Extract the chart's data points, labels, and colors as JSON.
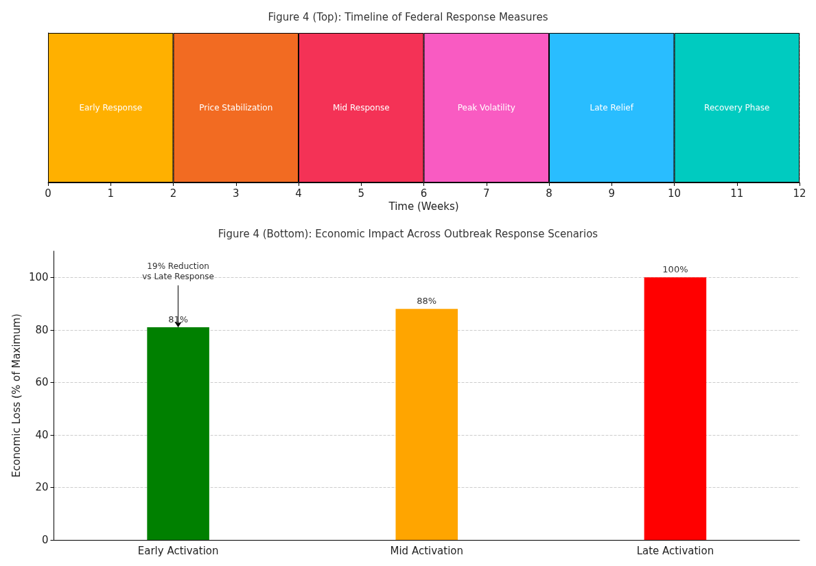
{
  "chart_data": [
    {
      "type": "bar",
      "title": "Figure 4 (Top): Timeline of Federal Response Measures",
      "xlabel": "Time (Weeks)",
      "orientation": "horizontal",
      "stacked": true,
      "categories": [
        null
      ],
      "xlim": [
        0,
        12
      ],
      "xticks": [
        0,
        1,
        2,
        3,
        4,
        5,
        6,
        7,
        8,
        9,
        10,
        11,
        12
      ],
      "grid": true,
      "tick_labels": "x",
      "series": [
        {
          "name": "Early Response",
          "color": "#ffb000",
          "values": [
            2
          ]
        },
        {
          "name": "Price Stabilization",
          "color": "#f26b22",
          "values": [
            2
          ]
        },
        {
          "name": "Mid Response",
          "color": "#f43256",
          "values": [
            2
          ]
        },
        {
          "name": "Peak Volatility",
          "color": "#f95bc2",
          "values": [
            2
          ]
        },
        {
          "name": "Late Relief",
          "color": "#29bdff",
          "values": [
            2
          ]
        },
        {
          "name": "Recovery Phase",
          "color": "#00cbc0",
          "values": [
            2
          ]
        }
      ]
    },
    {
      "type": "bar",
      "title": "Figure 4 (Bottom): Economic Impact Across Outbreak Response Scenarios",
      "ylabel": "Economic Loss (% of Maximum)",
      "categories": [
        "Early Activation",
        "Mid Activation",
        "Late Activation"
      ],
      "values": [
        81,
        88,
        100
      ],
      "colors": [
        "#008000",
        "#ffa500",
        "#ff0000"
      ],
      "value_labels": [
        "81%",
        "88%",
        "100%"
      ],
      "ylim": [
        0,
        110
      ],
      "yticks": [
        0,
        20,
        40,
        60,
        80,
        100
      ],
      "grid": true,
      "annotations": [
        {
          "text": "19% Reduction\nvs Late Response",
          "x": "Early Activation",
          "y": 81
        }
      ]
    }
  ]
}
